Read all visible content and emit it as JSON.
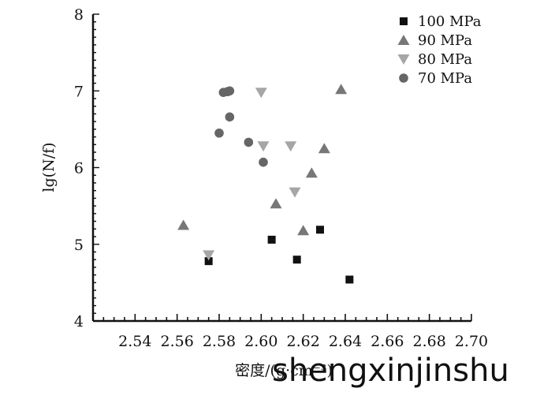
{
  "chart_data": {
    "type": "scatter",
    "title": "",
    "xlabel": "密度/(g·cm⁻³)",
    "ylabel": "lg(N/f)",
    "xlim": [
      2.52,
      2.7
    ],
    "ylim": [
      4,
      8
    ],
    "xticks": [
      "2.54",
      "2.56",
      "2.58",
      "2.60",
      "2.62",
      "2.64",
      "2.66",
      "2.68",
      "2.70"
    ],
    "yticks": [
      "4",
      "5",
      "6",
      "7",
      "8"
    ],
    "grid": false,
    "legend_position": "top-right",
    "series": [
      {
        "name": "100 MPa",
        "marker": "square",
        "color": "#111111",
        "points": [
          [
            2.575,
            4.78
          ],
          [
            2.605,
            5.06
          ],
          [
            2.617,
            4.8
          ],
          [
            2.628,
            5.19
          ],
          [
            2.642,
            4.54
          ]
        ]
      },
      {
        "name": "90 MPa",
        "marker": "triangle-up",
        "color": "#777777",
        "points": [
          [
            2.563,
            5.25
          ],
          [
            2.607,
            5.53
          ],
          [
            2.62,
            5.18
          ],
          [
            2.624,
            5.93
          ],
          [
            2.63,
            6.25
          ],
          [
            2.638,
            7.02
          ]
        ]
      },
      {
        "name": "80 MPa",
        "marker": "triangle-down",
        "color": "#a6a6a6",
        "points": [
          [
            2.575,
            4.86
          ],
          [
            2.6,
            6.98
          ],
          [
            2.601,
            6.28
          ],
          [
            2.614,
            6.28
          ],
          [
            2.616,
            5.68
          ]
        ]
      },
      {
        "name": "70 MPa",
        "marker": "circle",
        "color": "#666666",
        "points": [
          [
            2.58,
            6.45
          ],
          [
            2.582,
            6.98
          ],
          [
            2.584,
            6.99
          ],
          [
            2.585,
            7.0
          ],
          [
            2.585,
            6.66
          ],
          [
            2.594,
            6.33
          ],
          [
            2.601,
            6.07
          ]
        ]
      }
    ]
  },
  "watermark": "shengxinjinshu"
}
